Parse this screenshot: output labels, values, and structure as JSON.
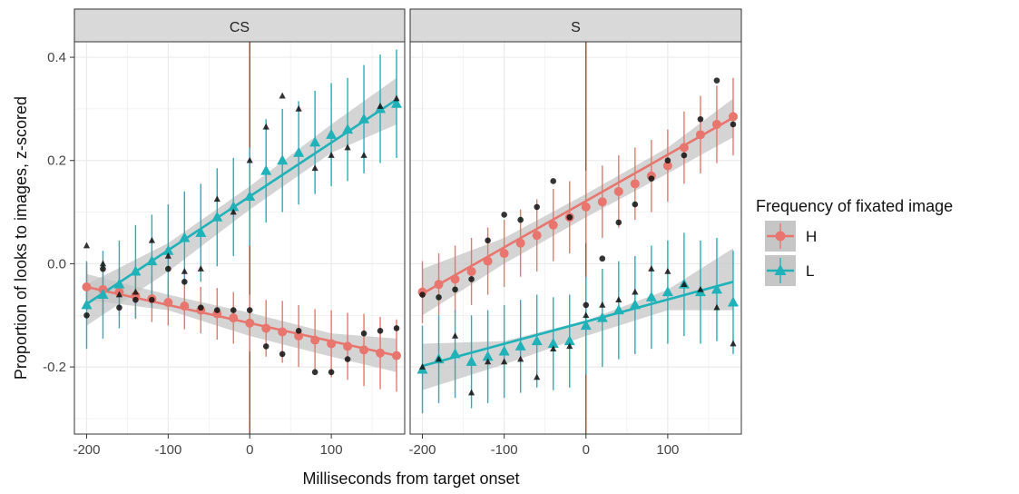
{
  "chart_data": {
    "type": "scatter",
    "xlabel": "Milliseconds from target onset",
    "ylabel": "Proportion of looks to images, z-scored",
    "xlim": [
      -215,
      190
    ],
    "ylim": [
      -0.33,
      0.43
    ],
    "x_ticks": [
      -200,
      -100,
      0,
      100
    ],
    "x_tick_labels": [
      "-200",
      "-100",
      "0",
      "100"
    ],
    "y_ticks": [
      -0.2,
      0.0,
      0.2,
      0.4
    ],
    "y_tick_labels": [
      "-0.2",
      "0.0",
      "0.2",
      "0.4"
    ],
    "vline_x": 0,
    "grid": true,
    "legend": {
      "title": "Frequency of fixated image",
      "position": "right",
      "entries": [
        {
          "label": "H",
          "color": "#e8766e",
          "shape": "circle"
        },
        {
          "label": "L",
          "color": "#1fb2b8",
          "shape": "triangle"
        }
      ]
    },
    "colors": {
      "H": "#e8766e",
      "L": "#1fb2b8",
      "vline": "#a0302a",
      "band": "#c6c6c6",
      "strip": "#d9d9d9"
    },
    "panels": [
      {
        "label": "CS",
        "series": [
          {
            "key": "H",
            "x": [
              -200,
              -180,
              -160,
              -140,
              -120,
              -100,
              -80,
              -60,
              -40,
              -20,
              0,
              20,
              40,
              60,
              80,
              100,
              120,
              140,
              160,
              180
            ],
            "y": [
              -0.045,
              -0.05,
              -0.055,
              -0.062,
              -0.068,
              -0.075,
              -0.082,
              -0.09,
              -0.097,
              -0.105,
              -0.115,
              -0.125,
              -0.132,
              -0.14,
              -0.148,
              -0.155,
              -0.16,
              -0.167,
              -0.173,
              -0.178
            ],
            "err": [
              0.045,
              0.045,
              0.045,
              0.045,
              0.045,
              0.045,
              0.045,
              0.045,
              0.05,
              0.05,
              0.055,
              0.055,
              0.06,
              0.06,
              0.06,
              0.065,
              0.065,
              0.07,
              0.07,
              0.07
            ],
            "fit": [
              [
                -200,
                -0.045
              ],
              [
                180,
                -0.178
              ]
            ],
            "band": [
              [
                -200,
                -0.02,
                -0.07
              ],
              [
                -100,
                -0.06,
                -0.09
              ],
              [
                0,
                -0.095,
                -0.14
              ],
              [
                100,
                -0.135,
                -0.18
              ],
              [
                180,
                -0.145,
                -0.21
              ]
            ],
            "raw_x": [
              -200,
              -180,
              -160,
              -140,
              -120,
              -100,
              -80,
              -60,
              -40,
              -20,
              0,
              20,
              40,
              60,
              80,
              100,
              120,
              140,
              160,
              180
            ],
            "raw_y": [
              -0.1,
              -0.01,
              -0.085,
              -0.07,
              -0.07,
              -0.01,
              -0.035,
              -0.085,
              -0.09,
              -0.09,
              -0.09,
              -0.16,
              -0.175,
              -0.13,
              -0.21,
              -0.21,
              -0.185,
              -0.135,
              -0.13,
              -0.125
            ]
          },
          {
            "key": "L",
            "x": [
              -200,
              -180,
              -160,
              -140,
              -120,
              -100,
              -80,
              -60,
              -40,
              -20,
              0,
              20,
              40,
              60,
              80,
              100,
              120,
              140,
              160,
              180
            ],
            "y": [
              -0.08,
              -0.06,
              -0.04,
              -0.015,
              0.005,
              0.025,
              0.05,
              0.06,
              0.09,
              0.11,
              0.13,
              0.18,
              0.2,
              0.215,
              0.235,
              0.25,
              0.26,
              0.28,
              0.3,
              0.31
            ],
            "err": [
              0.085,
              0.085,
              0.085,
              0.09,
              0.09,
              0.09,
              0.09,
              0.095,
              0.095,
              0.095,
              0.095,
              0.1,
              0.1,
              0.1,
              0.1,
              0.1,
              0.1,
              0.105,
              0.105,
              0.105
            ],
            "fit": [
              [
                -200,
                -0.078
              ],
              [
                180,
                0.318
              ]
            ],
            "band": [
              [
                -200,
                -0.04,
                -0.12
              ],
              [
                -100,
                0.04,
                -0.015
              ],
              [
                0,
                0.15,
                0.105
              ],
              [
                100,
                0.27,
                0.215
              ],
              [
                180,
                0.36,
                0.27
              ]
            ],
            "raw_x": [
              -200,
              -180,
              -160,
              -140,
              -120,
              -100,
              -80,
              -60,
              -40,
              -20,
              0,
              20,
              40,
              60,
              80,
              100,
              120,
              140,
              160,
              180
            ],
            "raw_y": [
              0.035,
              0.0,
              -0.06,
              -0.055,
              0.045,
              0.015,
              -0.015,
              -0.01,
              0.125,
              0.1,
              0.2,
              0.265,
              0.325,
              0.3,
              0.185,
              0.21,
              0.225,
              0.21,
              0.305,
              0.32
            ]
          }
        ]
      },
      {
        "label": "S",
        "series": [
          {
            "key": "H",
            "x": [
              -200,
              -180,
              -160,
              -140,
              -120,
              -100,
              -80,
              -60,
              -40,
              -20,
              0,
              20,
              40,
              60,
              80,
              100,
              120,
              140,
              160,
              180
            ],
            "y": [
              -0.055,
              -0.04,
              -0.03,
              -0.015,
              0.005,
              0.02,
              0.04,
              0.055,
              0.075,
              0.09,
              0.11,
              0.12,
              0.14,
              0.155,
              0.17,
              0.19,
              0.225,
              0.25,
              0.27,
              0.285
            ],
            "err": [
              0.06,
              0.06,
              0.065,
              0.065,
              0.065,
              0.065,
              0.065,
              0.07,
              0.07,
              0.07,
              0.07,
              0.07,
              0.07,
              0.07,
              0.07,
              0.07,
              0.07,
              0.075,
              0.075,
              0.075
            ],
            "fit": [
              [
                -200,
                -0.058
              ],
              [
                180,
                0.283
              ]
            ],
            "band": [
              [
                -200,
                -0.01,
                -0.1
              ],
              [
                -100,
                0.05,
                0.0
              ],
              [
                0,
                0.135,
                0.09
              ],
              [
                100,
                0.225,
                0.175
              ],
              [
                180,
                0.32,
                0.245
              ]
            ],
            "raw_x": [
              -200,
              -180,
              -160,
              -140,
              -120,
              -100,
              -80,
              -60,
              -40,
              -20,
              0,
              20,
              40,
              60,
              80,
              100,
              120,
              140,
              160,
              180
            ],
            "raw_y": [
              -0.06,
              -0.065,
              -0.05,
              -0.03,
              0.045,
              0.095,
              0.085,
              0.11,
              0.16,
              0.09,
              -0.08,
              0.01,
              0.08,
              0.115,
              0.165,
              0.2,
              0.21,
              0.28,
              0.355,
              0.27
            ]
          },
          {
            "key": "L",
            "x": [
              -200,
              -180,
              -160,
              -140,
              -120,
              -100,
              -80,
              -60,
              -40,
              -20,
              0,
              20,
              40,
              60,
              80,
              100,
              120,
              140,
              160,
              180
            ],
            "y": [
              -0.205,
              -0.185,
              -0.175,
              -0.19,
              -0.18,
              -0.17,
              -0.16,
              -0.15,
              -0.155,
              -0.15,
              -0.12,
              -0.105,
              -0.09,
              -0.08,
              -0.065,
              -0.055,
              -0.04,
              -0.055,
              -0.05,
              -0.075
            ],
            "err": [
              0.085,
              0.085,
              0.085,
              0.09,
              0.09,
              0.09,
              0.09,
              0.09,
              0.09,
              0.09,
              0.095,
              0.095,
              0.095,
              0.095,
              0.1,
              0.1,
              0.1,
              0.1,
              0.1,
              0.1
            ],
            "fit": [
              [
                -200,
                -0.198
              ],
              [
                180,
                -0.035
              ]
            ],
            "band": [
              [
                -200,
                -0.155,
                -0.245
              ],
              [
                -100,
                -0.15,
                -0.195
              ],
              [
                0,
                -0.11,
                -0.14
              ],
              [
                100,
                -0.05,
                -0.09
              ],
              [
                180,
                0.03,
                -0.09
              ]
            ],
            "raw_x": [
              -200,
              -180,
              -160,
              -140,
              -120,
              -100,
              -80,
              -60,
              -40,
              -20,
              0,
              20,
              40,
              60,
              80,
              100,
              120,
              140,
              160,
              180
            ],
            "raw_y": [
              -0.2,
              -0.185,
              -0.14,
              -0.25,
              -0.19,
              -0.19,
              -0.185,
              -0.22,
              -0.165,
              -0.16,
              -0.1,
              -0.08,
              -0.07,
              -0.055,
              -0.01,
              -0.015,
              -0.04,
              -0.05,
              -0.085,
              -0.155
            ]
          }
        ]
      }
    ]
  }
}
